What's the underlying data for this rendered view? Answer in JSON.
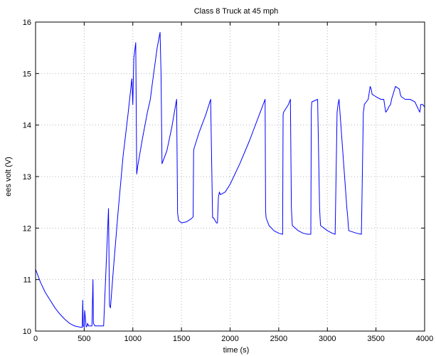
{
  "chart_data": {
    "type": "line",
    "title": "Class 8 Truck at 45 mph",
    "xlabel": "time (s)",
    "ylabel": "ees volt (V)",
    "xlim": [
      0,
      4000
    ],
    "ylim": [
      10,
      16
    ],
    "x_ticks": [
      0,
      500,
      1000,
      1500,
      2000,
      2500,
      3000,
      3500,
      4000
    ],
    "y_ticks": [
      10,
      11,
      12,
      13,
      14,
      15,
      16
    ],
    "x_tick_labels": [
      "0",
      "500",
      "1000",
      "1500",
      "2000",
      "2500",
      "3000",
      "3500",
      "4000"
    ],
    "y_tick_labels": [
      "10",
      "11",
      "12",
      "13",
      "14",
      "15",
      "16"
    ],
    "grid": true,
    "series": [
      {
        "color": "#0000ff",
        "x": [
          0,
          50,
          100,
          150,
          200,
          250,
          300,
          350,
          400,
          450,
          480,
          485,
          490,
          500,
          505,
          520,
          530,
          535,
          545,
          580,
          590,
          595,
          610,
          700,
          750,
          760,
          770,
          800,
          850,
          900,
          950,
          990,
          1000,
          1010,
          1030,
          1040,
          1050,
          1100,
          1150,
          1180,
          1200,
          1250,
          1280,
          1290,
          1300,
          1350,
          1400,
          1450,
          1460,
          1470,
          1500,
          1550,
          1600,
          1620,
          1625,
          1630,
          1680,
          1750,
          1800,
          1820,
          1830,
          1860,
          1870,
          1880,
          1890,
          1900,
          1950,
          2000,
          2050,
          2100,
          2200,
          2300,
          2360,
          2365,
          2370,
          2400,
          2450,
          2500,
          2540,
          2545,
          2550,
          2600,
          2620,
          2630,
          2635,
          2640,
          2700,
          2750,
          2800,
          2830,
          2835,
          2840,
          2900,
          2920,
          2925,
          2930,
          3000,
          3050,
          3080,
          3100,
          3110,
          3115,
          3120,
          3200,
          3210,
          3215,
          3220,
          3300,
          3350,
          3370,
          3375,
          3380,
          3420,
          3440,
          3450,
          3460,
          3500,
          3550,
          3580,
          3600,
          3620,
          3630,
          3650,
          3660,
          3700,
          3740,
          3750,
          3760,
          3800,
          3850,
          3900,
          3950,
          3955,
          3960,
          3980,
          4000
        ],
        "values": [
          11.2,
          10.95,
          10.75,
          10.6,
          10.45,
          10.33,
          10.23,
          10.15,
          10.1,
          10.08,
          10.07,
          10.6,
          10.1,
          10.08,
          10.4,
          10.08,
          10.1,
          10.15,
          10.1,
          10.1,
          11.0,
          10.15,
          10.1,
          10.1,
          12.38,
          10.5,
          10.45,
          11.2,
          12.35,
          13.4,
          14.2,
          14.9,
          14.4,
          15.3,
          15.6,
          13.05,
          13.2,
          13.75,
          14.25,
          14.5,
          14.8,
          15.5,
          15.8,
          15.0,
          13.25,
          13.5,
          13.95,
          14.5,
          12.3,
          12.15,
          12.1,
          12.12,
          12.18,
          12.22,
          13.5,
          13.55,
          13.85,
          14.2,
          14.5,
          12.2,
          12.2,
          12.1,
          12.1,
          12.6,
          12.7,
          12.65,
          12.7,
          12.85,
          13.05,
          13.25,
          13.7,
          14.2,
          14.5,
          12.35,
          12.2,
          12.05,
          11.95,
          11.9,
          11.88,
          14.2,
          14.25,
          14.4,
          14.5,
          12.4,
          12.2,
          12.05,
          11.95,
          11.9,
          11.88,
          11.88,
          14.3,
          14.45,
          14.5,
          12.4,
          12.2,
          12.05,
          11.95,
          11.9,
          11.88,
          14.25,
          14.4,
          14.45,
          14.5,
          12.4,
          12.2,
          12.05,
          11.95,
          11.9,
          11.88,
          14.25,
          14.3,
          14.4,
          14.5,
          14.75,
          14.7,
          14.6,
          14.55,
          14.5,
          14.5,
          14.25,
          14.3,
          14.35,
          14.4,
          14.5,
          14.75,
          14.7,
          14.6,
          14.55,
          14.5,
          14.5,
          14.45,
          14.25,
          14.3,
          14.4,
          14.4,
          14.35
        ]
      }
    ]
  }
}
